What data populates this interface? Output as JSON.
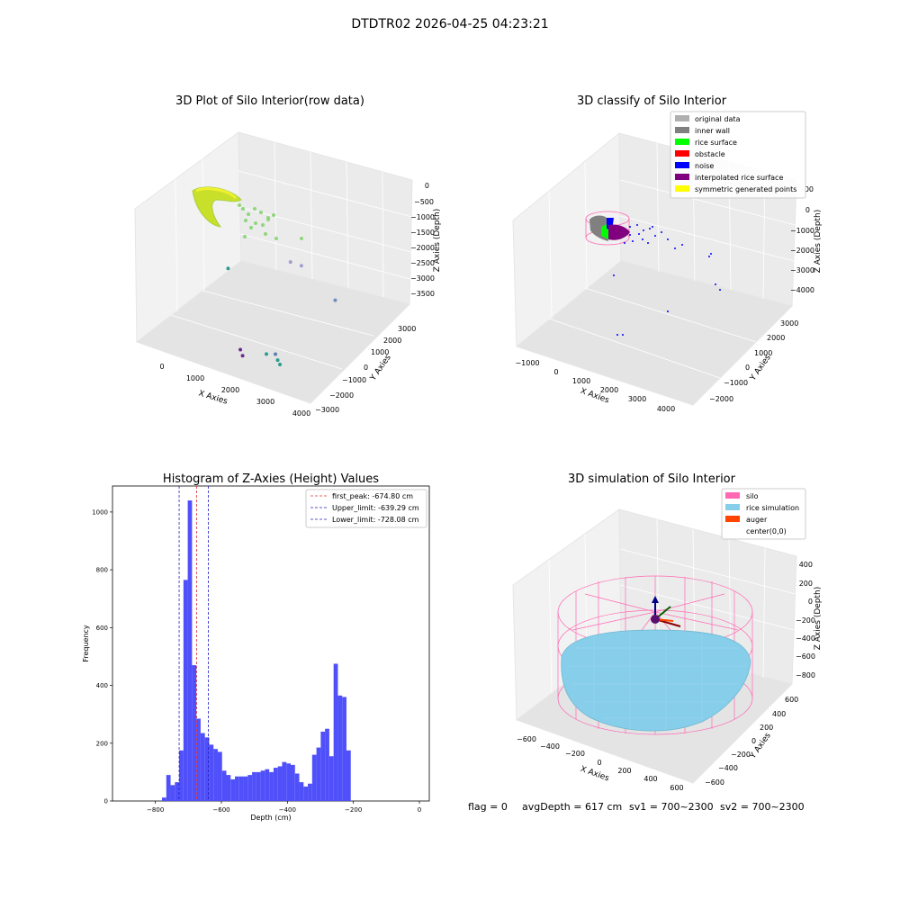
{
  "suptitle": "DTDTR02 2026-04-25 04:23:21",
  "status": {
    "flag": "flag = 0",
    "avg": "avgDepth = 617 cm",
    "sv1": "sv1 = 700~2300",
    "sv2": "sv2 = 700~2300"
  },
  "colors": {
    "hist_bar": "#5050fa",
    "peak_line": "#e03030",
    "limit_line": "#2020c0",
    "silo": "#ff69b4",
    "rice_simulation": "#87ceeb",
    "auger": "#ff4500",
    "original_data": "#b0b0b0",
    "inner_wall": "#808080",
    "rice_surface": "#00ff00",
    "obstacle": "#ff0000",
    "noise": "#0000ff",
    "interpolated_rice_surface": "#800080",
    "symmetric_generated_points": "#ffff00"
  },
  "chart_data": [
    {
      "type": "scatter",
      "title": "3D Plot of Silo Interior(row data)",
      "xlabel": "X Axies",
      "ylabel": "Y Axies",
      "zlabel": "Z Axies (Depth)",
      "x_ticks": [
        "0",
        "1000",
        "2000",
        "3000",
        "4000"
      ],
      "y_ticks": [
        "3000",
        "2000",
        "1000",
        "0",
        "−1000",
        "−2000",
        "−3000"
      ],
      "z_ticks": [
        "0",
        "−500",
        "−1000",
        "−1500",
        "−2000",
        "−2500",
        "−3000",
        "−3500"
      ],
      "points": [
        {
          "x": 2900,
          "y": -2600,
          "z": -3100,
          "c": "#2a9d8f"
        },
        {
          "x": 3000,
          "y": -2700,
          "z": -3150,
          "c": "#2a9d8f"
        },
        {
          "x": 2800,
          "y": -2500,
          "z": -3000,
          "c": "#5a7fb0"
        },
        {
          "x": 2400,
          "y": -2100,
          "z": -3300,
          "c": "#2a9d8f"
        },
        {
          "x": 1600,
          "y": -1800,
          "z": -3600,
          "c": "#6a2c8c"
        },
        {
          "x": 1700,
          "y": -1900,
          "z": -3700,
          "c": "#6a2c8c"
        },
        {
          "x": 700,
          "y": -400,
          "z": -2100,
          "c": "#2a9d8f"
        },
        {
          "x": 3100,
          "y": 500,
          "z": -2400,
          "c": "#6c8fc0"
        },
        {
          "x": 2100,
          "y": 800,
          "z": -1900,
          "c": "#a0a0d0"
        },
        {
          "x": 1900,
          "y": 600,
          "z": -1800,
          "c": "#a0a0d0"
        }
      ]
    },
    {
      "type": "scatter",
      "title": "3D classify of Silo Interior",
      "xlabel": "X Axies",
      "ylabel": "Y Axies",
      "zlabel": "Z Axies (Depth)",
      "x_ticks": [
        "−1000",
        "0",
        "1000",
        "2000",
        "3000",
        "4000"
      ],
      "y_ticks": [
        "3000",
        "2000",
        "1000",
        "0",
        "−1000",
        "−2000"
      ],
      "z_ticks": [
        "00",
        "0",
        "−1000",
        "−2000",
        "−3000",
        "−4000"
      ],
      "legend": [
        {
          "label": "original data",
          "color": "#b0b0b0"
        },
        {
          "label": "inner wall",
          "color": "#808080"
        },
        {
          "label": "rice surface",
          "color": "#00ff00"
        },
        {
          "label": "obstacle",
          "color": "#ff0000"
        },
        {
          "label": "noise",
          "color": "#0000ff"
        },
        {
          "label": "interpolated rice surface",
          "color": "#800080"
        },
        {
          "label": "symmetric generated points",
          "color": "#ffff00"
        }
      ],
      "legend_loc": "upper right"
    },
    {
      "type": "bar",
      "title": "Histogram of Z-Axies (Height) Values",
      "xlabel": "Depth (cm)",
      "ylabel": "Frequency",
      "xlim": [
        -930,
        30
      ],
      "ylim": [
        0,
        1090
      ],
      "x_ticks": [
        -800,
        -600,
        -400,
        -200,
        0
      ],
      "y_ticks": [
        0,
        200,
        400,
        600,
        800,
        1000
      ],
      "bin_start": -780,
      "bin_width": 13,
      "values": [
        12,
        90,
        55,
        65,
        175,
        765,
        1040,
        470,
        285,
        235,
        220,
        195,
        180,
        170,
        105,
        90,
        75,
        85,
        85,
        85,
        90,
        100,
        100,
        105,
        110,
        100,
        115,
        120,
        135,
        130,
        125,
        95,
        65,
        50,
        60,
        160,
        185,
        240,
        250,
        155,
        475,
        365,
        360,
        175
      ],
      "vlines": [
        {
          "label": "first_peak: -674.80 cm",
          "x": -674.8,
          "color": "#e03030"
        },
        {
          "label": "Upper_limit: -639.29 cm",
          "x": -639.29,
          "color": "#2020c0"
        },
        {
          "label": "Lower_limit: -728.08 cm",
          "x": -728.08,
          "color": "#2020c0"
        }
      ],
      "legend_loc": "upper right"
    },
    {
      "type": "surface",
      "title": "3D simulation of Silo Interior",
      "xlabel": "X Axies",
      "ylabel": "Y Axies",
      "zlabel": "Z Axies (Depth)",
      "x_ticks": [
        "−600",
        "−400",
        "−200",
        "0",
        "200",
        "400",
        "600"
      ],
      "y_ticks": [
        "600",
        "400",
        "200",
        "0",
        "−200",
        "−400",
        "−600"
      ],
      "z_ticks": [
        "400",
        "200",
        "0",
        "−200",
        "−400",
        "−600",
        "−800"
      ],
      "legend": [
        {
          "label": "silo",
          "color": "#ff69b4"
        },
        {
          "label": "rice simulation",
          "color": "#87ceeb"
        },
        {
          "label": "auger",
          "color": "#ff4500"
        },
        {
          "label": "center(0,0)",
          "color": ""
        }
      ],
      "legend_loc": "upper right"
    }
  ]
}
